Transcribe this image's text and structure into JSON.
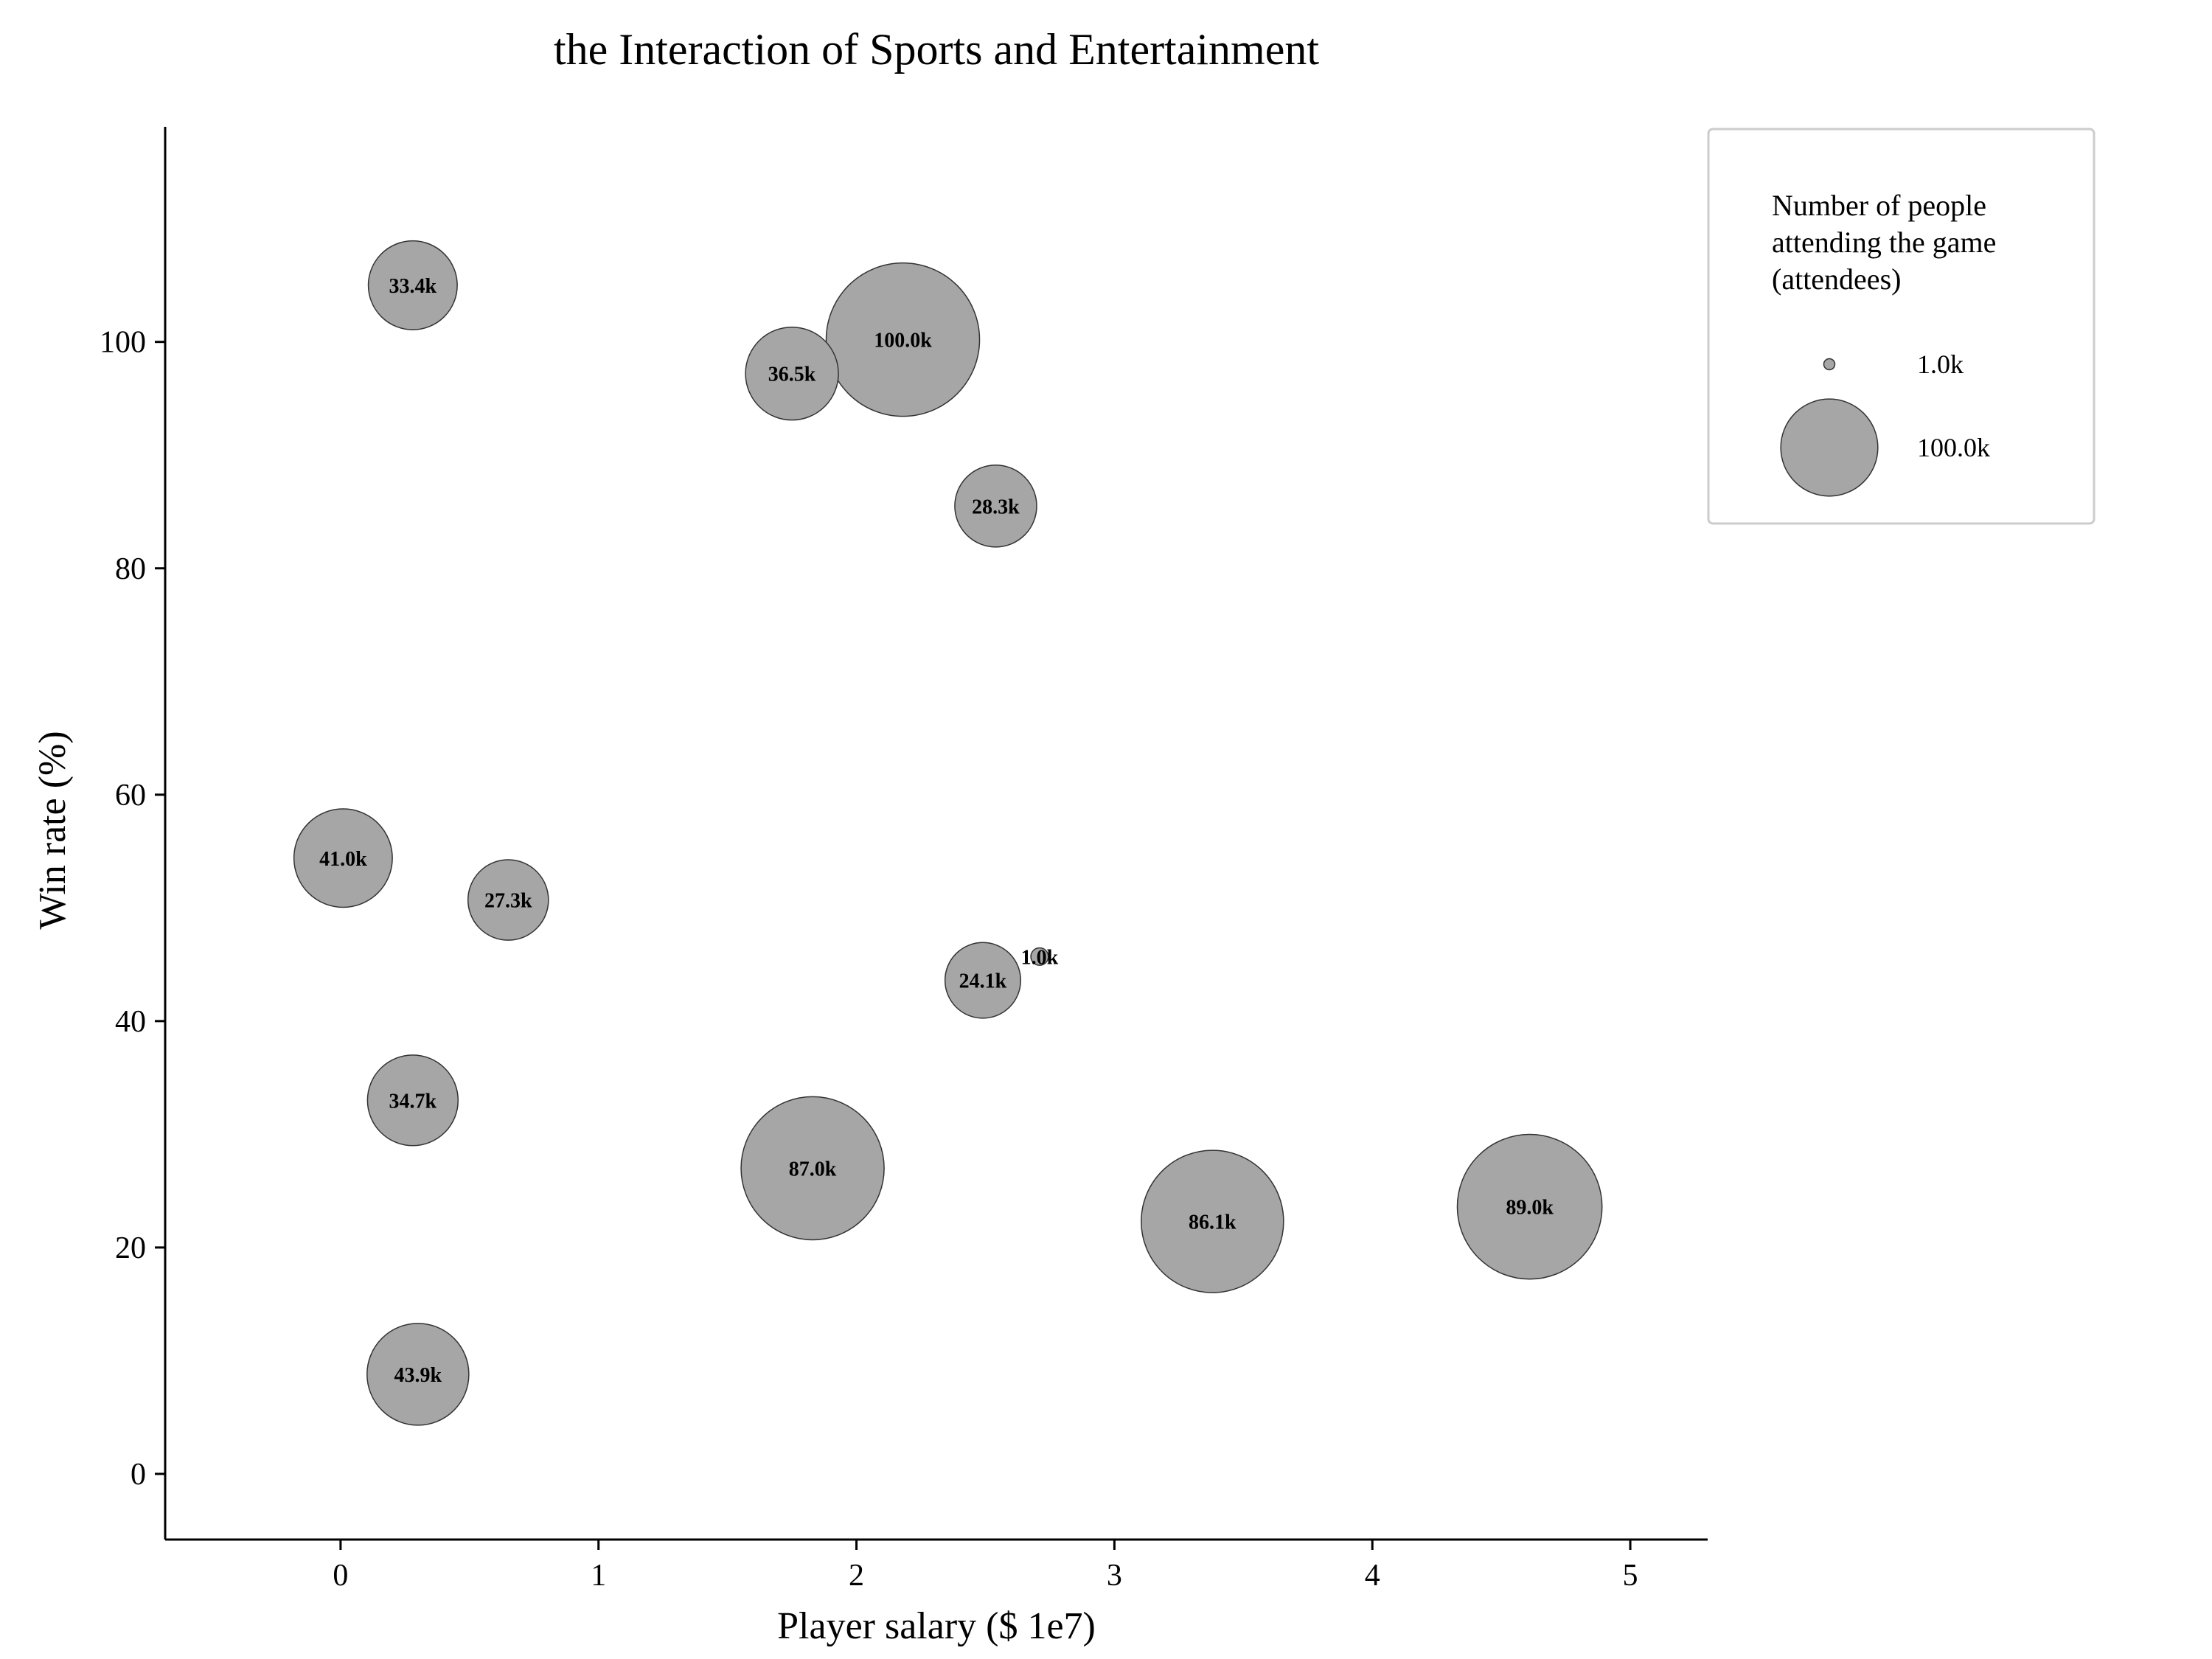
{
  "chart_data": {
    "type": "scatter",
    "title": "the Interaction of Sports and Entertainment",
    "xlabel": "Player salary ($ 1e7)",
    "ylabel": "Win rate (%)",
    "xlim": [
      -0.68,
      5.3
    ],
    "ylim": [
      -5.8,
      119
    ],
    "xticks": [
      "0",
      "1",
      "2",
      "3",
      "4",
      "5"
    ],
    "yticks": [
      "0",
      "20",
      "40",
      "60",
      "80",
      "100"
    ],
    "grid": false,
    "points": [
      {
        "x": 0.28,
        "y": 105,
        "size": 33.4,
        "label": "33.4k"
      },
      {
        "x": 1.75,
        "y": 97.2,
        "size": 36.5,
        "label": "36.5k"
      },
      {
        "x": 2.18,
        "y": 100.2,
        "size": 100.0,
        "label": "100.0k"
      },
      {
        "x": 2.54,
        "y": 85.5,
        "size": 28.3,
        "label": "28.3k"
      },
      {
        "x": 0.01,
        "y": 54.4,
        "size": 41.0,
        "label": "41.0k"
      },
      {
        "x": 0.65,
        "y": 50.7,
        "size": 27.3,
        "label": "27.3k"
      },
      {
        "x": 2.71,
        "y": 45.7,
        "size": 1.0,
        "label": "1.0k"
      },
      {
        "x": 2.49,
        "y": 43.6,
        "size": 24.1,
        "label": "24.1k"
      },
      {
        "x": 0.28,
        "y": 33.0,
        "size": 34.7,
        "label": "34.7k"
      },
      {
        "x": 1.83,
        "y": 27.0,
        "size": 87.0,
        "label": "87.0k"
      },
      {
        "x": 3.38,
        "y": 22.3,
        "size": 86.1,
        "label": "86.1k"
      },
      {
        "x": 4.61,
        "y": 23.6,
        "size": 89.0,
        "label": "89.0k"
      },
      {
        "x": 0.3,
        "y": 8.8,
        "size": 43.9,
        "label": "43.9k"
      }
    ],
    "legend": {
      "position": "top-right",
      "title_lines": [
        "Number of people",
        "attending the game",
        "(attendees)"
      ],
      "entries": [
        {
          "size": 1.0,
          "label": "1.0k"
        },
        {
          "size": 100.0,
          "label": "100.0k"
        }
      ]
    },
    "colors": {
      "bubble_fill": "#a6a6a6",
      "bubble_stroke": "#333333",
      "axis": "#000000",
      "legend_border": "#cccccc"
    }
  }
}
